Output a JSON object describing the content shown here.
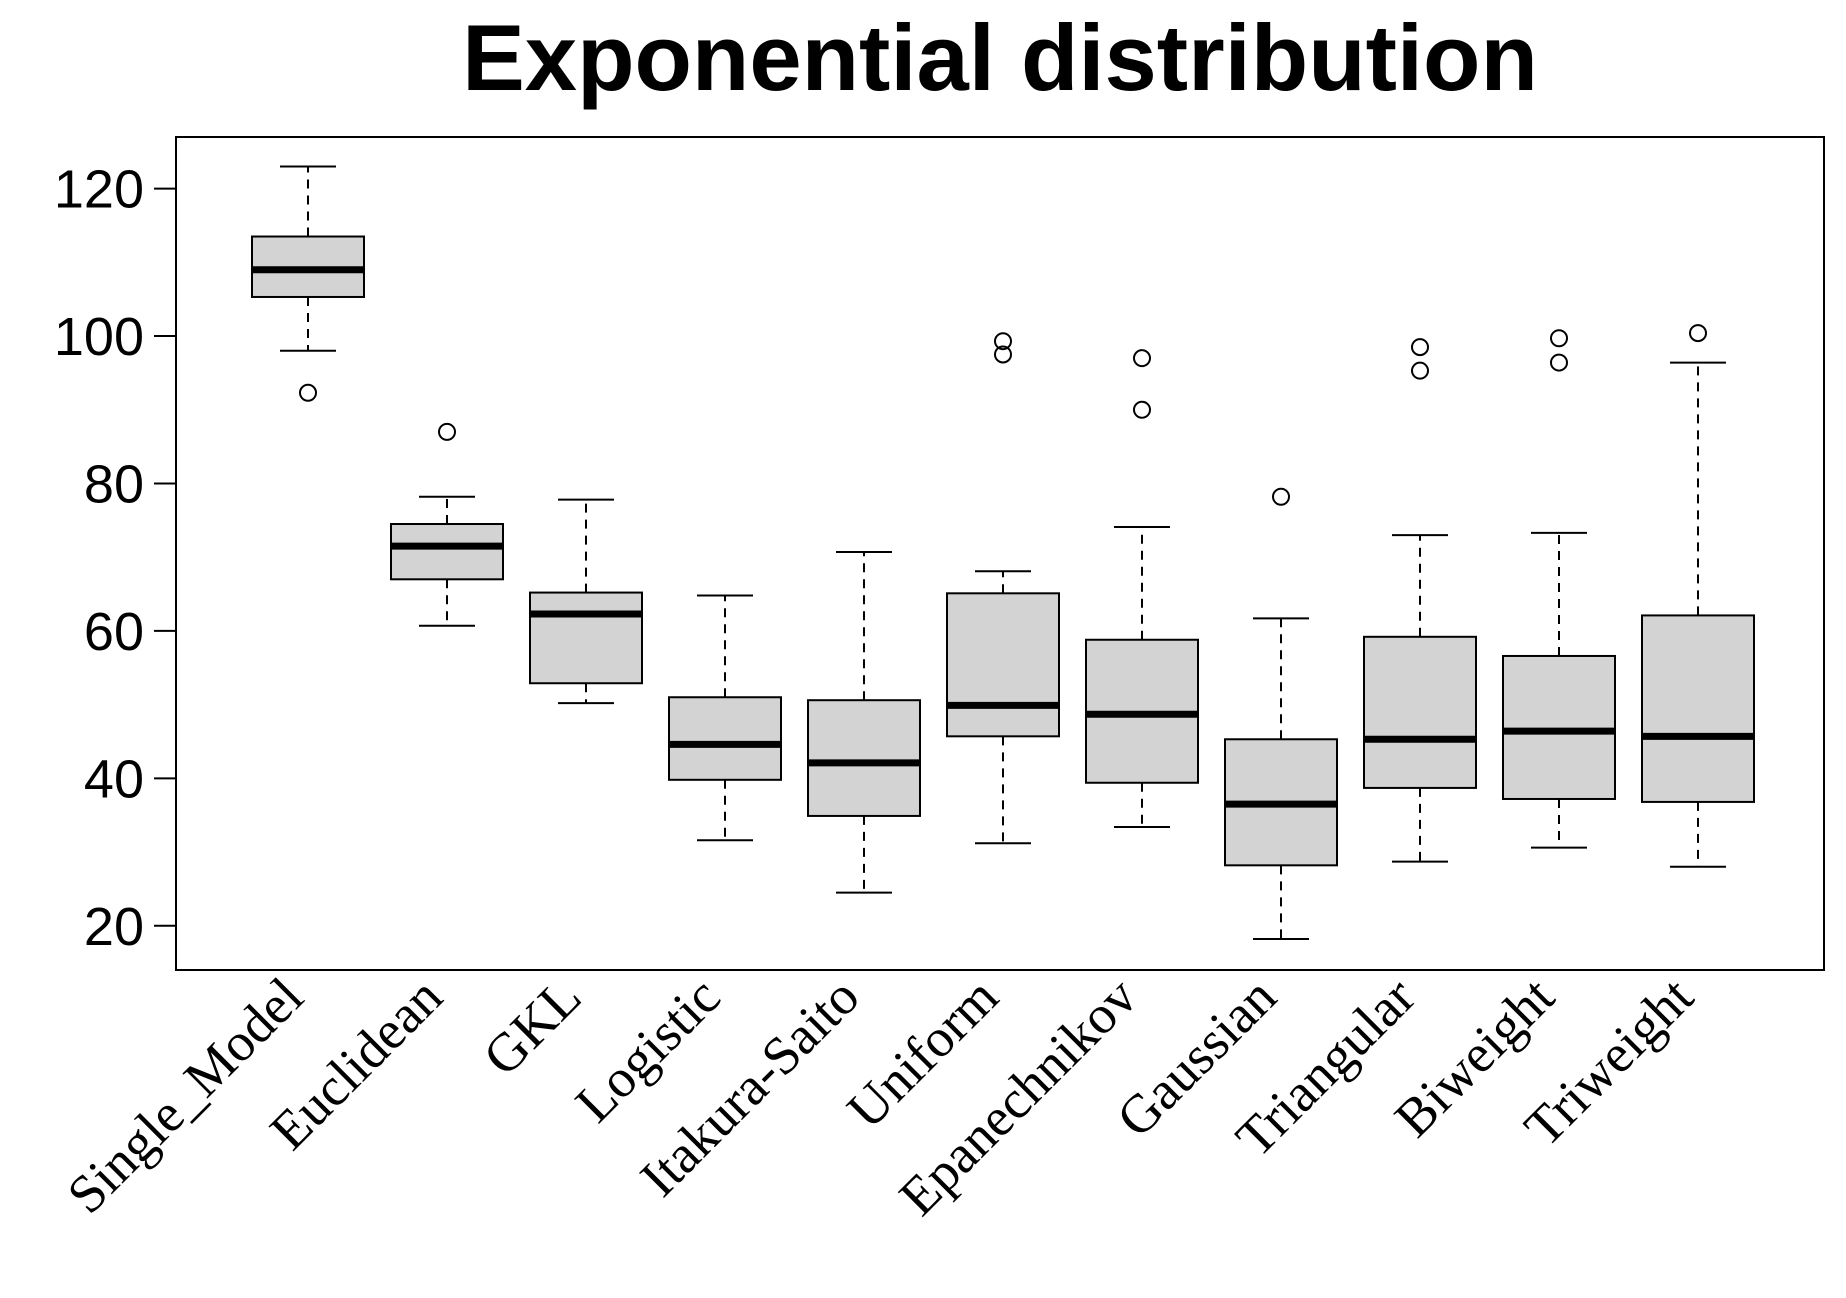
{
  "chart_data": {
    "type": "boxplot",
    "title": "Exponential distribution",
    "xlabel": "",
    "ylabel": "",
    "ylim": [
      14,
      127
    ],
    "yticks": [
      20,
      40,
      60,
      80,
      100,
      120
    ],
    "grid": false,
    "colors": {
      "box_fill": "#d3d3d3",
      "stroke": "#000000",
      "background": "#ffffff"
    },
    "categories": [
      "Single_Model",
      "Euclidean",
      "GKL",
      "Logistic",
      "Itakura-Saito",
      "Uniform",
      "Epanechnikov",
      "Gaussian",
      "Triangular",
      "Biweight",
      "Triweight"
    ],
    "boxes": [
      {
        "name": "Single_Model",
        "whisker_low": 98,
        "q1": 105.3,
        "median": 109,
        "q3": 113.5,
        "whisker_high": 123,
        "outliers": [
          92.3
        ]
      },
      {
        "name": "Euclidean",
        "whisker_low": 60.7,
        "q1": 67,
        "median": 71.5,
        "q3": 74.5,
        "whisker_high": 78.2,
        "outliers": [
          87
        ]
      },
      {
        "name": "GKL",
        "whisker_low": 50.2,
        "q1": 52.9,
        "median": 62.3,
        "q3": 65.2,
        "whisker_high": 77.8,
        "outliers": []
      },
      {
        "name": "Logistic",
        "whisker_low": 31.6,
        "q1": 39.8,
        "median": 44.6,
        "q3": 51,
        "whisker_high": 64.8,
        "outliers": []
      },
      {
        "name": "Itakura-Saito",
        "whisker_low": 24.5,
        "q1": 34.9,
        "median": 42.1,
        "q3": 50.6,
        "whisker_high": 70.7,
        "outliers": []
      },
      {
        "name": "Uniform",
        "whisker_low": 31.2,
        "q1": 45.7,
        "median": 49.9,
        "q3": 65.1,
        "whisker_high": 68.1,
        "outliers": [
          97.5,
          99.3
        ]
      },
      {
        "name": "Epanechnikov",
        "whisker_low": 33.4,
        "q1": 39.4,
        "median": 48.7,
        "q3": 58.8,
        "whisker_high": 74.1,
        "outliers": [
          90,
          97
        ]
      },
      {
        "name": "Gaussian",
        "whisker_low": 18.2,
        "q1": 28.2,
        "median": 36.5,
        "q3": 45.3,
        "whisker_high": 61.7,
        "outliers": [
          78.2
        ]
      },
      {
        "name": "Triangular",
        "whisker_low": 28.7,
        "q1": 38.7,
        "median": 45.3,
        "q3": 59.2,
        "whisker_high": 73,
        "outliers": [
          95.3,
          98.5
        ]
      },
      {
        "name": "Biweight",
        "whisker_low": 30.6,
        "q1": 37.2,
        "median": 46.4,
        "q3": 56.6,
        "whisker_high": 73.3,
        "outliers": [
          96.4,
          99.7
        ]
      },
      {
        "name": "Triweight",
        "whisker_low": 28,
        "q1": 36.8,
        "median": 45.7,
        "q3": 62.1,
        "whisker_high": 96.4,
        "outliers": [
          100.4
        ]
      }
    ]
  }
}
